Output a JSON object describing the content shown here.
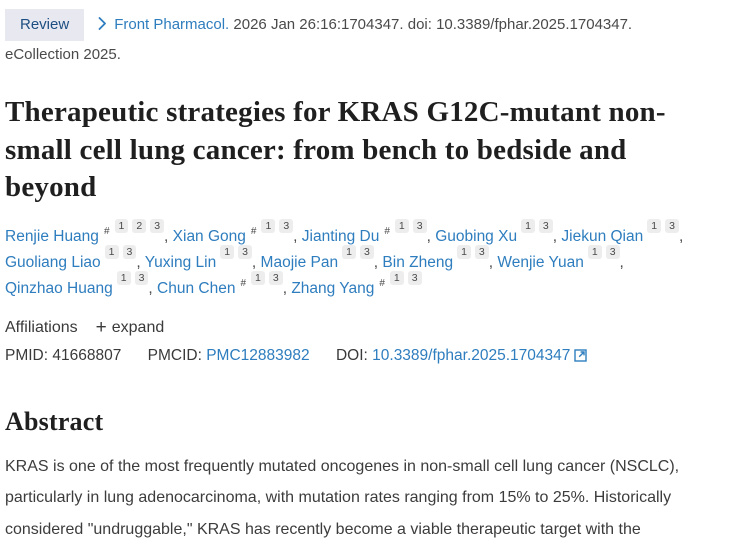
{
  "header": {
    "badge_label": "Review",
    "journal_name": "Front Pharmacol.",
    "citation_text": "2026 Jan 26:16:1704347. doi: 10.3389/fphar.2025.1704347.",
    "ecollection_text": "eCollection 2025."
  },
  "article": {
    "title": "Therapeutic strategies for KRAS G12C-mutant non-small cell lung cancer: from bench to bedside and beyond"
  },
  "authors_meta": {
    "equal_symbol": "#",
    "separator": ", "
  },
  "authors": [
    {
      "name": "Renjie Huang",
      "equal": true,
      "affs": [
        "1",
        "2",
        "3"
      ]
    },
    {
      "name": "Xian Gong",
      "equal": true,
      "affs": [
        "1",
        "3"
      ]
    },
    {
      "name": "Jianting Du",
      "equal": true,
      "affs": [
        "1",
        "3"
      ]
    },
    {
      "name": "Guobing Xu",
      "equal": false,
      "affs": [
        "1",
        "3"
      ]
    },
    {
      "name": "Jiekun Qian",
      "equal": false,
      "affs": [
        "1",
        "3"
      ]
    },
    {
      "name": "Guoliang Liao",
      "equal": false,
      "affs": [
        "1",
        "3"
      ]
    },
    {
      "name": "Yuxing Lin",
      "equal": false,
      "affs": [
        "1",
        "3"
      ]
    },
    {
      "name": "Maojie Pan",
      "equal": false,
      "affs": [
        "1",
        "3"
      ]
    },
    {
      "name": "Bin Zheng",
      "equal": false,
      "affs": [
        "1",
        "3"
      ]
    },
    {
      "name": "Wenjie Yuan",
      "equal": false,
      "affs": [
        "1",
        "3"
      ]
    },
    {
      "name": "Qinzhao Huang",
      "equal": false,
      "affs": [
        "1",
        "3"
      ]
    },
    {
      "name": "Chun Chen",
      "equal": true,
      "affs": [
        "1",
        "3"
      ]
    },
    {
      "name": "Zhang Yang",
      "equal": true,
      "affs": [
        "1",
        "3"
      ]
    }
  ],
  "affiliations": {
    "label": "Affiliations",
    "plus_icon": "+",
    "expand_label": "expand"
  },
  "identifiers": {
    "pmid_label": "PMID:",
    "pmid_value": "41668807",
    "pmcid_label": "PMCID:",
    "pmcid_value": "PMC12883982",
    "doi_label": "DOI:",
    "doi_value": "10.3389/fphar.2025.1704347"
  },
  "abstract": {
    "heading": "Abstract",
    "paragraph": "KRAS is one of the most frequently mutated oncogenes in non-small cell lung cancer (NSCLC), particularly in lung adenocarcinoma, with mutation rates ranging from 15% to 25%. Historically considered \"undruggable,\" KRAS has recently become a viable therapeutic target with the"
  },
  "colors": {
    "link_blue": "#2e7dbe",
    "badge_background": "#e8e8f0",
    "badge_text": "#1d4e82",
    "superscript_background": "#ededed",
    "body_text": "#3c3c3c",
    "heading_text": "#1f1f1f"
  }
}
